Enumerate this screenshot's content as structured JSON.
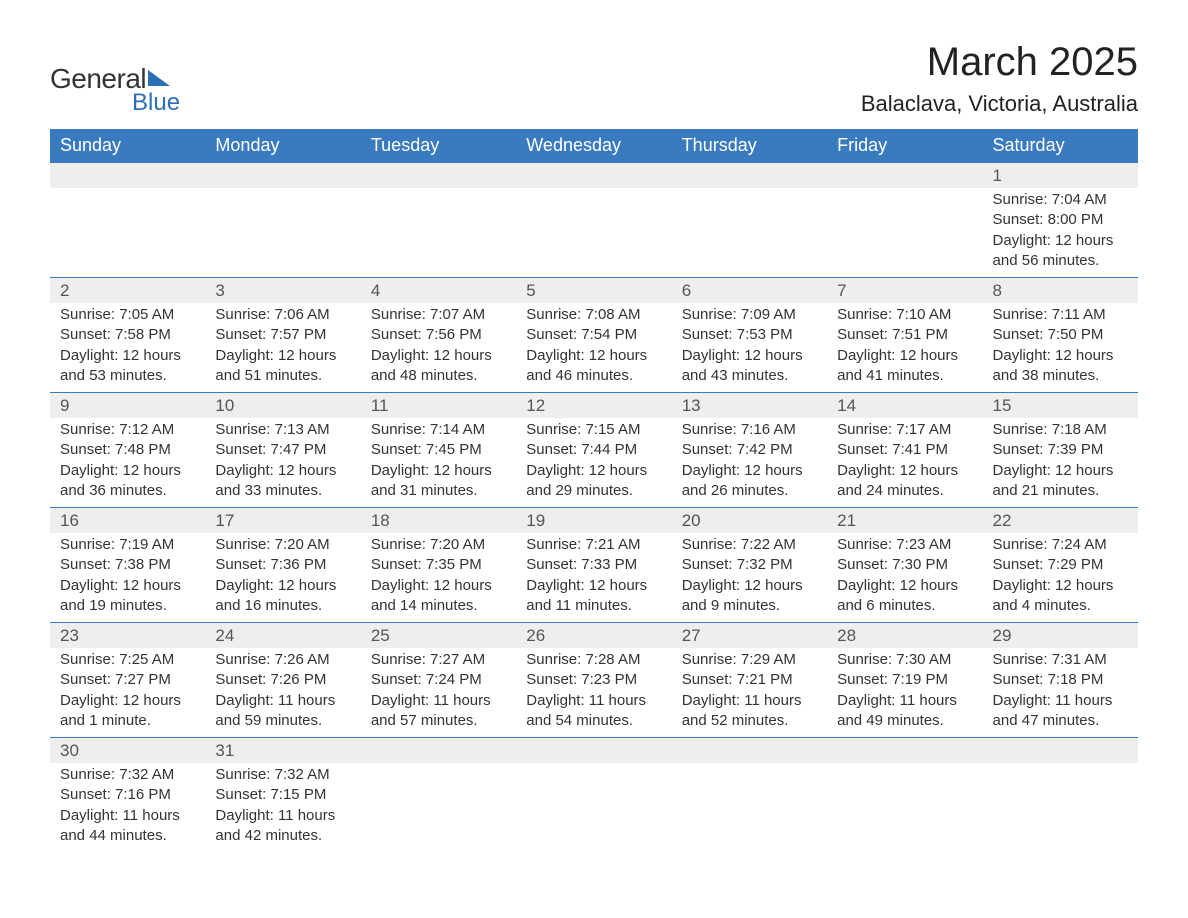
{
  "logo": {
    "text_general": "General",
    "text_blue": "Blue",
    "accent_color": "#2d6fb5"
  },
  "header": {
    "month_title": "March 2025",
    "location": "Balaclava, Victoria, Australia"
  },
  "colors": {
    "header_bg": "#3a7bbf",
    "header_text": "#ffffff",
    "daynum_bg": "#eeeeee",
    "border": "#3a7bbf",
    "text": "#333333"
  },
  "calendar": {
    "day_headers": [
      "Sunday",
      "Monday",
      "Tuesday",
      "Wednesday",
      "Thursday",
      "Friday",
      "Saturday"
    ],
    "weeks": [
      [
        null,
        null,
        null,
        null,
        null,
        null,
        {
          "n": "1",
          "sr": "Sunrise: 7:04 AM",
          "ss": "Sunset: 8:00 PM",
          "dl": "Daylight: 12 hours and 56 minutes."
        }
      ],
      [
        {
          "n": "2",
          "sr": "Sunrise: 7:05 AM",
          "ss": "Sunset: 7:58 PM",
          "dl": "Daylight: 12 hours and 53 minutes."
        },
        {
          "n": "3",
          "sr": "Sunrise: 7:06 AM",
          "ss": "Sunset: 7:57 PM",
          "dl": "Daylight: 12 hours and 51 minutes."
        },
        {
          "n": "4",
          "sr": "Sunrise: 7:07 AM",
          "ss": "Sunset: 7:56 PM",
          "dl": "Daylight: 12 hours and 48 minutes."
        },
        {
          "n": "5",
          "sr": "Sunrise: 7:08 AM",
          "ss": "Sunset: 7:54 PM",
          "dl": "Daylight: 12 hours and 46 minutes."
        },
        {
          "n": "6",
          "sr": "Sunrise: 7:09 AM",
          "ss": "Sunset: 7:53 PM",
          "dl": "Daylight: 12 hours and 43 minutes."
        },
        {
          "n": "7",
          "sr": "Sunrise: 7:10 AM",
          "ss": "Sunset: 7:51 PM",
          "dl": "Daylight: 12 hours and 41 minutes."
        },
        {
          "n": "8",
          "sr": "Sunrise: 7:11 AM",
          "ss": "Sunset: 7:50 PM",
          "dl": "Daylight: 12 hours and 38 minutes."
        }
      ],
      [
        {
          "n": "9",
          "sr": "Sunrise: 7:12 AM",
          "ss": "Sunset: 7:48 PM",
          "dl": "Daylight: 12 hours and 36 minutes."
        },
        {
          "n": "10",
          "sr": "Sunrise: 7:13 AM",
          "ss": "Sunset: 7:47 PM",
          "dl": "Daylight: 12 hours and 33 minutes."
        },
        {
          "n": "11",
          "sr": "Sunrise: 7:14 AM",
          "ss": "Sunset: 7:45 PM",
          "dl": "Daylight: 12 hours and 31 minutes."
        },
        {
          "n": "12",
          "sr": "Sunrise: 7:15 AM",
          "ss": "Sunset: 7:44 PM",
          "dl": "Daylight: 12 hours and 29 minutes."
        },
        {
          "n": "13",
          "sr": "Sunrise: 7:16 AM",
          "ss": "Sunset: 7:42 PM",
          "dl": "Daylight: 12 hours and 26 minutes."
        },
        {
          "n": "14",
          "sr": "Sunrise: 7:17 AM",
          "ss": "Sunset: 7:41 PM",
          "dl": "Daylight: 12 hours and 24 minutes."
        },
        {
          "n": "15",
          "sr": "Sunrise: 7:18 AM",
          "ss": "Sunset: 7:39 PM",
          "dl": "Daylight: 12 hours and 21 minutes."
        }
      ],
      [
        {
          "n": "16",
          "sr": "Sunrise: 7:19 AM",
          "ss": "Sunset: 7:38 PM",
          "dl": "Daylight: 12 hours and 19 minutes."
        },
        {
          "n": "17",
          "sr": "Sunrise: 7:20 AM",
          "ss": "Sunset: 7:36 PM",
          "dl": "Daylight: 12 hours and 16 minutes."
        },
        {
          "n": "18",
          "sr": "Sunrise: 7:20 AM",
          "ss": "Sunset: 7:35 PM",
          "dl": "Daylight: 12 hours and 14 minutes."
        },
        {
          "n": "19",
          "sr": "Sunrise: 7:21 AM",
          "ss": "Sunset: 7:33 PM",
          "dl": "Daylight: 12 hours and 11 minutes."
        },
        {
          "n": "20",
          "sr": "Sunrise: 7:22 AM",
          "ss": "Sunset: 7:32 PM",
          "dl": "Daylight: 12 hours and 9 minutes."
        },
        {
          "n": "21",
          "sr": "Sunrise: 7:23 AM",
          "ss": "Sunset: 7:30 PM",
          "dl": "Daylight: 12 hours and 6 minutes."
        },
        {
          "n": "22",
          "sr": "Sunrise: 7:24 AM",
          "ss": "Sunset: 7:29 PM",
          "dl": "Daylight: 12 hours and 4 minutes."
        }
      ],
      [
        {
          "n": "23",
          "sr": "Sunrise: 7:25 AM",
          "ss": "Sunset: 7:27 PM",
          "dl": "Daylight: 12 hours and 1 minute."
        },
        {
          "n": "24",
          "sr": "Sunrise: 7:26 AM",
          "ss": "Sunset: 7:26 PM",
          "dl": "Daylight: 11 hours and 59 minutes."
        },
        {
          "n": "25",
          "sr": "Sunrise: 7:27 AM",
          "ss": "Sunset: 7:24 PM",
          "dl": "Daylight: 11 hours and 57 minutes."
        },
        {
          "n": "26",
          "sr": "Sunrise: 7:28 AM",
          "ss": "Sunset: 7:23 PM",
          "dl": "Daylight: 11 hours and 54 minutes."
        },
        {
          "n": "27",
          "sr": "Sunrise: 7:29 AM",
          "ss": "Sunset: 7:21 PM",
          "dl": "Daylight: 11 hours and 52 minutes."
        },
        {
          "n": "28",
          "sr": "Sunrise: 7:30 AM",
          "ss": "Sunset: 7:19 PM",
          "dl": "Daylight: 11 hours and 49 minutes."
        },
        {
          "n": "29",
          "sr": "Sunrise: 7:31 AM",
          "ss": "Sunset: 7:18 PM",
          "dl": "Daylight: 11 hours and 47 minutes."
        }
      ],
      [
        {
          "n": "30",
          "sr": "Sunrise: 7:32 AM",
          "ss": "Sunset: 7:16 PM",
          "dl": "Daylight: 11 hours and 44 minutes."
        },
        {
          "n": "31",
          "sr": "Sunrise: 7:32 AM",
          "ss": "Sunset: 7:15 PM",
          "dl": "Daylight: 11 hours and 42 minutes."
        },
        null,
        null,
        null,
        null,
        null
      ]
    ]
  }
}
